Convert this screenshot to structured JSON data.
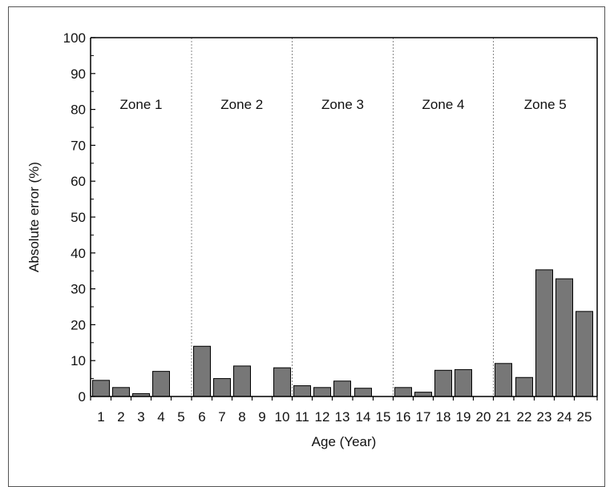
{
  "chart_data": {
    "type": "bar",
    "xlabel": "Age (Year)",
    "ylabel": "Absolute error (%)",
    "ylim": [
      0,
      100
    ],
    "yticks": [
      "0",
      "10",
      "20",
      "30",
      "40",
      "50",
      "60",
      "70",
      "80",
      "90",
      "100"
    ],
    "categories": [
      "1",
      "2",
      "3",
      "4",
      "5",
      "6",
      "7",
      "8",
      "9",
      "10",
      "11",
      "12",
      "13",
      "14",
      "15",
      "16",
      "17",
      "18",
      "19",
      "20",
      "21",
      "22",
      "23",
      "24",
      "25"
    ],
    "values": [
      4.5,
      2.5,
      0.8,
      7,
      0,
      14,
      5,
      8.5,
      0,
      8,
      3,
      2.5,
      4.3,
      2.3,
      0,
      2.5,
      1.2,
      7.3,
      7.5,
      0,
      9.2,
      5.3,
      35.3,
      32.8,
      23.7
    ],
    "zones": [
      "Zone 1",
      "Zone 2",
      "Zone 3",
      "Zone 4",
      "Zone 5"
    ],
    "bar_color": "#777777",
    "grid": false
  }
}
